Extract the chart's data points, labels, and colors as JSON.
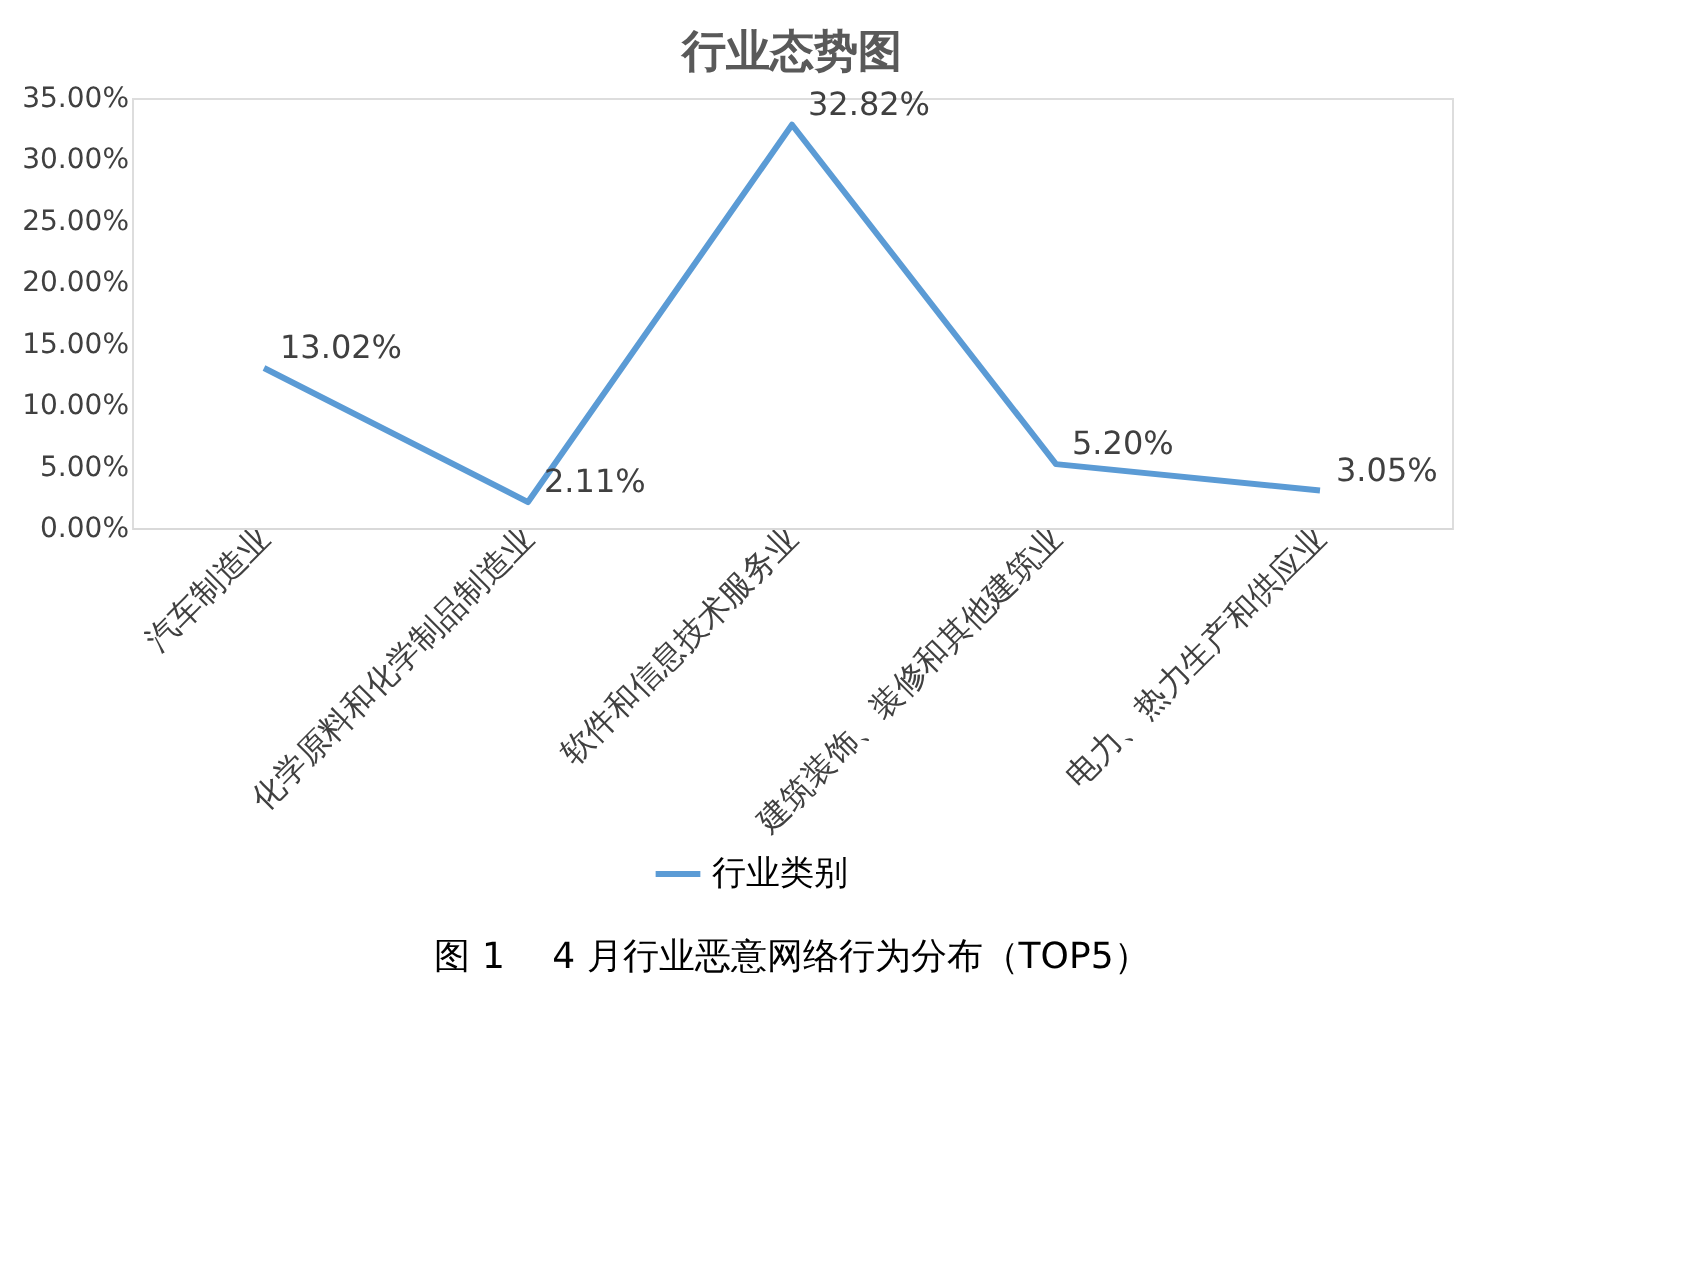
{
  "chart_data": {
    "type": "line",
    "title": "行业态势图",
    "categories": [
      "汽车制造业",
      "化学原料和化学制品制造业",
      "软件和信息技术服务业",
      "建筑装饰、装修和其他建筑业",
      "电力、热力生产和供应业"
    ],
    "series": [
      {
        "name": "行业类别",
        "color": "#5b9bd5",
        "values": [
          13.02,
          2.11,
          32.82,
          5.2,
          3.05
        ],
        "value_labels": [
          "13.02%",
          "2.11%",
          "32.82%",
          "5.20%",
          "3.05%"
        ]
      }
    ],
    "ylim": [
      0,
      35
    ],
    "yticks": [
      {
        "value": 0,
        "label": "0.00%"
      },
      {
        "value": 5,
        "label": "5.00%"
      },
      {
        "value": 10,
        "label": "10.00%"
      },
      {
        "value": 15,
        "label": "15.00%"
      },
      {
        "value": 20,
        "label": "20.00%"
      },
      {
        "value": 25,
        "label": "25.00%"
      },
      {
        "value": 30,
        "label": "30.00%"
      },
      {
        "value": 35,
        "label": "35.00%"
      }
    ],
    "grid": false,
    "legend": "bottom",
    "marker": "none",
    "line_style": "solid",
    "annotations": [
      "图 1　 4 月行业恶意网络行为分布（TOP5）"
    ]
  }
}
